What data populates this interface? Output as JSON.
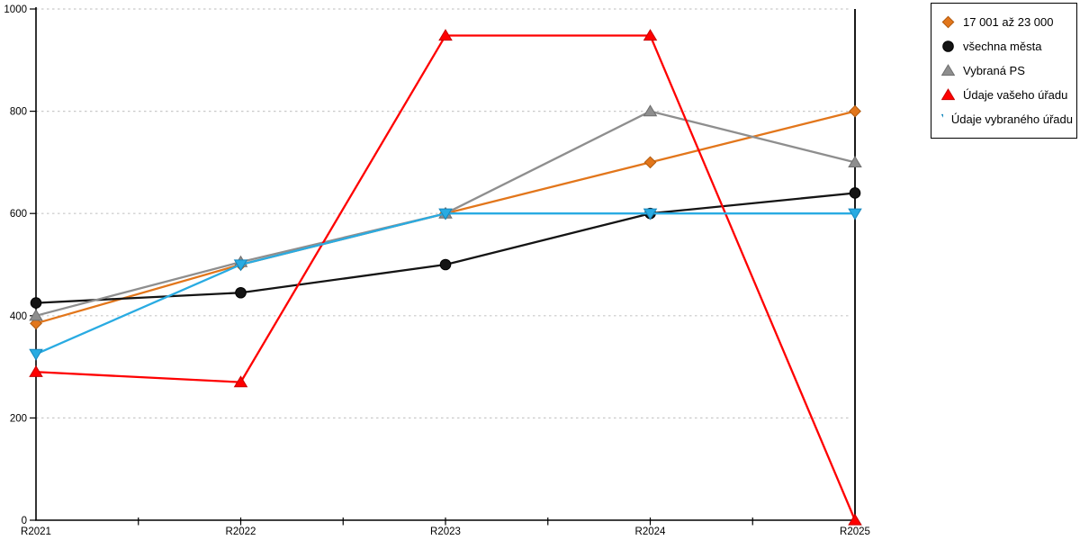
{
  "chart_data": {
    "type": "line",
    "title": "",
    "xlabel": "",
    "ylabel": "",
    "categories": [
      "R2021",
      "R2022",
      "R2023",
      "R2024",
      "R2025"
    ],
    "series": [
      {
        "name": "17 001 až 23 000",
        "marker": "diamond",
        "color": "#E2761B",
        "edge": "#B05A0F",
        "values": [
          385,
          500,
          600,
          700,
          800
        ]
      },
      {
        "name": "všechna města",
        "marker": "circle",
        "color": "#141414",
        "edge": "#000000",
        "values": [
          425,
          445,
          500,
          600,
          640
        ]
      },
      {
        "name": "Vybraná PS",
        "marker": "triangle-up",
        "color": "#8E8E8E",
        "edge": "#6E6E6E",
        "values": [
          400,
          505,
          600,
          800,
          700
        ]
      },
      {
        "name": "Údaje vašeho úřadu",
        "marker": "triangle-up",
        "color": "#FE0000",
        "edge": "#C80000",
        "values": [
          290,
          270,
          948,
          948,
          0
        ]
      },
      {
        "name": "Údaje vybraného úřadu",
        "marker": "triangle-down",
        "color": "#29ABE2",
        "edge": "#1787BC",
        "values": [
          325,
          500,
          600,
          600,
          600
        ]
      }
    ],
    "ylim": [
      0,
      1000
    ],
    "yticks": [
      0,
      200,
      400,
      600,
      800,
      1000
    ],
    "ytick_labels": [
      "0",
      "200",
      "400",
      "600",
      "800",
      "1000"
    ],
    "grid": "horizontal-dotted",
    "gridline_color": "#C9C9C9",
    "axis_color": "#000000",
    "legend_position": "top-right"
  }
}
